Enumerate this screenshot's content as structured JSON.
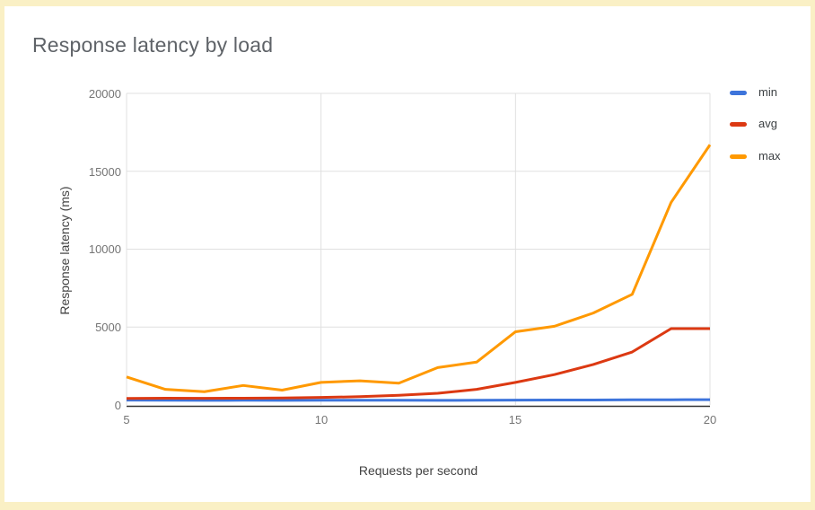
{
  "title": "Response latency by load",
  "chart_data": {
    "type": "line",
    "title": "Response latency by load",
    "xlabel": "Requests per second",
    "ylabel": "Response latency (ms)",
    "x": [
      5,
      6,
      7,
      8,
      9,
      10,
      11,
      12,
      13,
      14,
      15,
      16,
      17,
      18,
      19,
      20
    ],
    "series": [
      {
        "name": "min",
        "color": "#3D74DB",
        "values": [
          310,
          300,
          295,
          300,
          295,
          300,
          305,
          300,
          295,
          300,
          310,
          315,
          320,
          330,
          335,
          340
        ]
      },
      {
        "name": "avg",
        "color": "#DC3912",
        "values": [
          420,
          430,
          425,
          435,
          445,
          480,
          530,
          620,
          750,
          1000,
          1450,
          1950,
          2600,
          3400,
          4900,
          4900
        ]
      },
      {
        "name": "max",
        "color": "#FF9900",
        "values": [
          1800,
          1000,
          850,
          1250,
          950,
          1450,
          1550,
          1400,
          2400,
          2750,
          4700,
          5050,
          5900,
          7100,
          13000,
          16700
        ]
      }
    ],
    "xlim": [
      5,
      20
    ],
    "ylim": [
      0,
      20000
    ],
    "x_ticks": [
      5,
      10,
      15,
      20
    ],
    "y_ticks": [
      0,
      5000,
      10000,
      15000,
      20000
    ],
    "grid": true,
    "legend_position": "right"
  },
  "colors": {
    "page_border": "#FAF0C5",
    "background": "#FFFFFF",
    "title_text": "#5F6368",
    "tick_text": "#757575",
    "axis_title_text": "#424242",
    "legend_text": "#3C4043",
    "gridline": "#E0E0E0",
    "axis_line": "#333333"
  }
}
